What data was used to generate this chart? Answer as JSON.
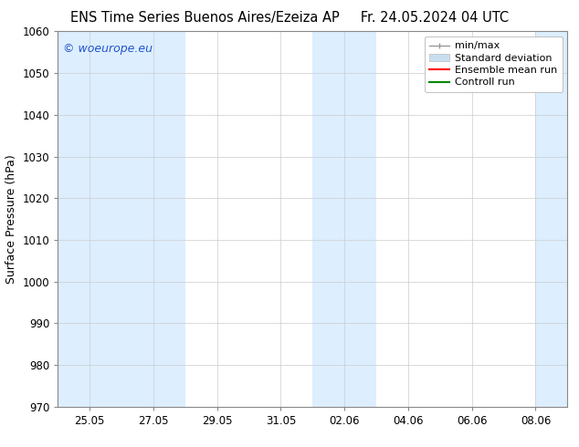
{
  "title_left": "ENS Time Series Buenos Aires/Ezeiza AP",
  "title_right": "Fr. 24.05.2024 04 UTC",
  "ylabel": "Surface Pressure (hPa)",
  "ylim": [
    970,
    1060
  ],
  "yticks": [
    970,
    980,
    990,
    1000,
    1010,
    1020,
    1030,
    1040,
    1050,
    1060
  ],
  "xtick_labels": [
    "25.05",
    "27.05",
    "29.05",
    "31.05",
    "02.06",
    "04.06",
    "06.06",
    "08.06"
  ],
  "xtick_positions": [
    1,
    3,
    5,
    7,
    9,
    11,
    13,
    15
  ],
  "xlim": [
    0,
    16
  ],
  "bg_color": "#ffffff",
  "plot_bg_color": "#ffffff",
  "shaded_bands": [
    {
      "x_start": 0,
      "x_end": 2,
      "color": "#ddeeff"
    },
    {
      "x_start": 2,
      "x_end": 4,
      "color": "#ddeeff"
    },
    {
      "x_start": 8,
      "x_end": 10,
      "color": "#ddeeff"
    },
    {
      "x_start": 15,
      "x_end": 16,
      "color": "#ddeeff"
    }
  ],
  "legend_labels": [
    "min/max",
    "Standard deviation",
    "Ensemble mean run",
    "Controll run"
  ],
  "legend_colors": [
    "#999999",
    "#c8dff0",
    "#ff0000",
    "#008800"
  ],
  "watermark": "© woeurope.eu",
  "watermark_color": "#2255cc",
  "grid_color": "#cccccc",
  "font_size_title": 10.5,
  "font_size_axis": 9,
  "font_size_tick": 8.5,
  "font_size_legend": 8,
  "font_size_watermark": 9
}
